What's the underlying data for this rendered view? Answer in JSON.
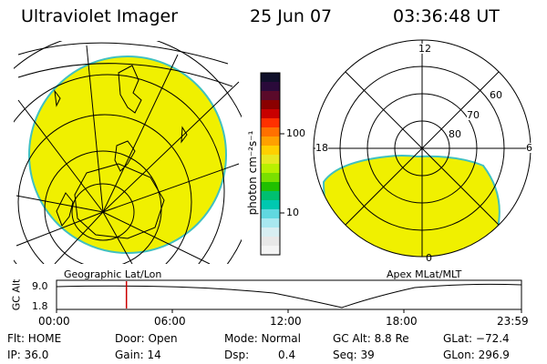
{
  "header": {
    "title": "Ultraviolet Imager",
    "date": "25 Jun 07",
    "time": "03:36:48 UT"
  },
  "colorbar": {
    "unit_label": "photon cm⁻²s⁻¹",
    "tick_100": "100",
    "tick_10": "10",
    "colors": [
      "#10102a",
      "#2a0a3a",
      "#5a0a2a",
      "#8a0000",
      "#c80000",
      "#ff3000",
      "#ff7000",
      "#ffa000",
      "#ffd000",
      "#e8e820",
      "#b8f000",
      "#7ae000",
      "#20c000",
      "#00c070",
      "#00c8b0",
      "#60d8e0",
      "#a8e8f0",
      "#d8eef2",
      "#e8e8e8",
      "#f4f4f4"
    ]
  },
  "left_map": {
    "caption": "Geographic Lat/Lon",
    "fill_color": "#f0f000"
  },
  "right_map": {
    "caption": "Apex MLat/MLT",
    "fill_color": "#f0f000",
    "mlt_labels": {
      "top": "12",
      "right": "6",
      "bottom": "0",
      "left": "18"
    },
    "lat_labels": [
      "60",
      "70",
      "80"
    ]
  },
  "altitude_plot": {
    "ylabel": "GC Alt",
    "ytick_high": "9.0",
    "ytick_low": "1.8",
    "x_ticks": [
      "00:00",
      "06:00",
      "12:00",
      "18:00",
      "23:59"
    ],
    "marker_color": "#cc0000",
    "marker_hour": 3.61
  },
  "info": {
    "flt": "Flt: HOME",
    "ip": "IP: 36.0",
    "door": "Door: Open",
    "gain": "Gain: 14",
    "mode": "Mode: Normal",
    "dsp_label": "Dsp:",
    "dsp_value": "0.4",
    "gc_alt": "GC Alt: 8.8 Re",
    "seq": "Seq: 39",
    "glat": "GLat: −72.4",
    "glon": "GLon: 296.9"
  }
}
